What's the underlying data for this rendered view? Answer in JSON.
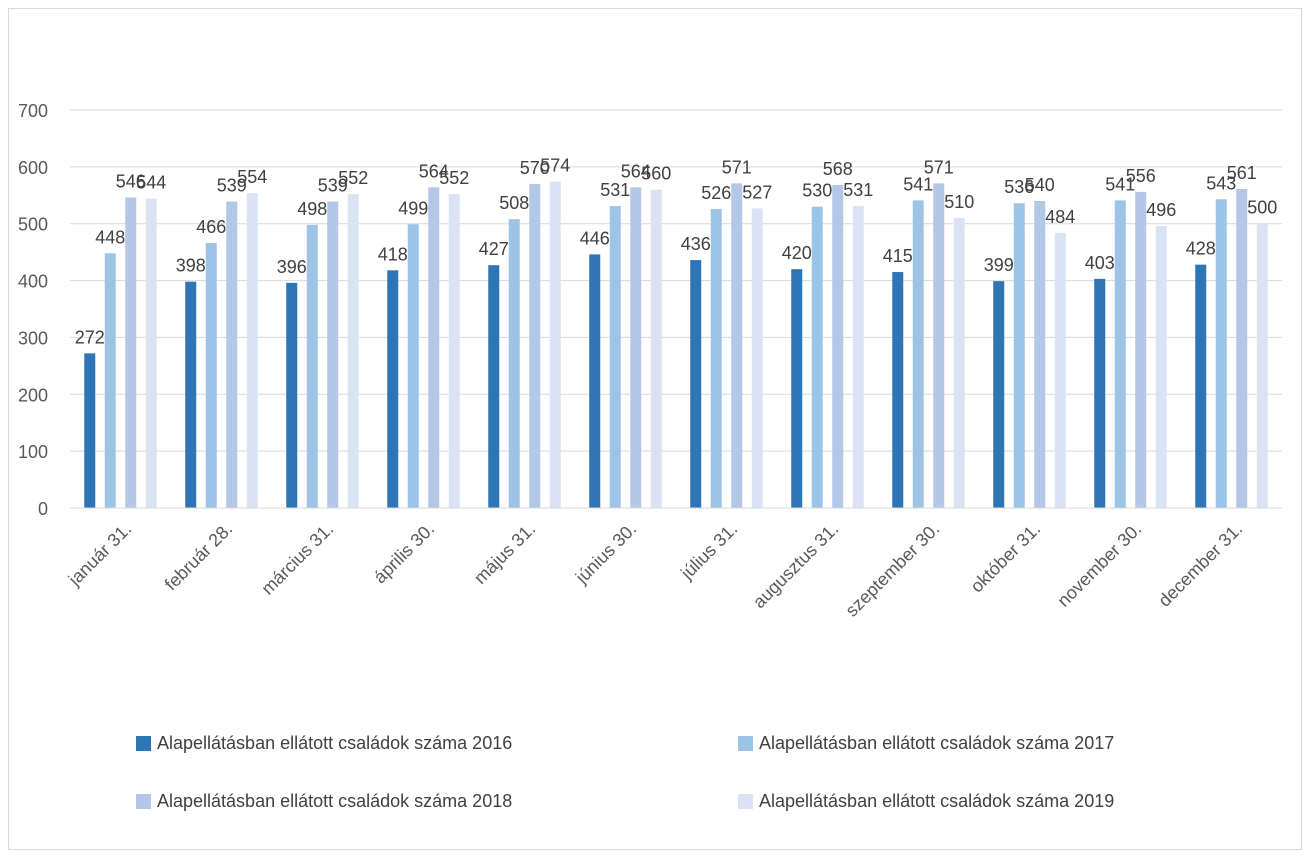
{
  "chart_data": {
    "type": "bar",
    "title": "",
    "xlabel": "",
    "ylabel": "",
    "ylim": [
      0,
      700
    ],
    "yticks": [
      0,
      100,
      200,
      300,
      400,
      500,
      600,
      700
    ],
    "grid": true,
    "legend_position": "bottom",
    "categories": [
      "január 31.",
      "február 28.",
      "március 31.",
      "április 30.",
      "május 31.",
      "június 30.",
      "július 31.",
      "augusztus 31.",
      "szeptember 30.",
      "október 31.",
      "november 30.",
      "december 31."
    ],
    "series": [
      {
        "name": "Alapellátásban ellátott családok száma 2016",
        "color": "#2e75b6",
        "values": [
          272,
          398,
          396,
          418,
          427,
          446,
          436,
          420,
          415,
          399,
          403,
          428
        ]
      },
      {
        "name": "Alapellátásban ellátott családok száma 2017",
        "color": "#9dc3e6",
        "values": [
          448,
          466,
          498,
          499,
          508,
          531,
          526,
          530,
          541,
          536,
          541,
          543
        ]
      },
      {
        "name": "Alapellátásban ellátott családok száma 2018",
        "color": "#b4c7e7",
        "values": [
          546,
          539,
          539,
          564,
          570,
          564,
          571,
          568,
          571,
          540,
          556,
          561
        ]
      },
      {
        "name": "Alapellátásban ellátott családok száma 2019",
        "color": "#dae3f3",
        "values": [
          544,
          554,
          552,
          552,
          574,
          560,
          527,
          531,
          510,
          484,
          496,
          500
        ]
      }
    ]
  }
}
